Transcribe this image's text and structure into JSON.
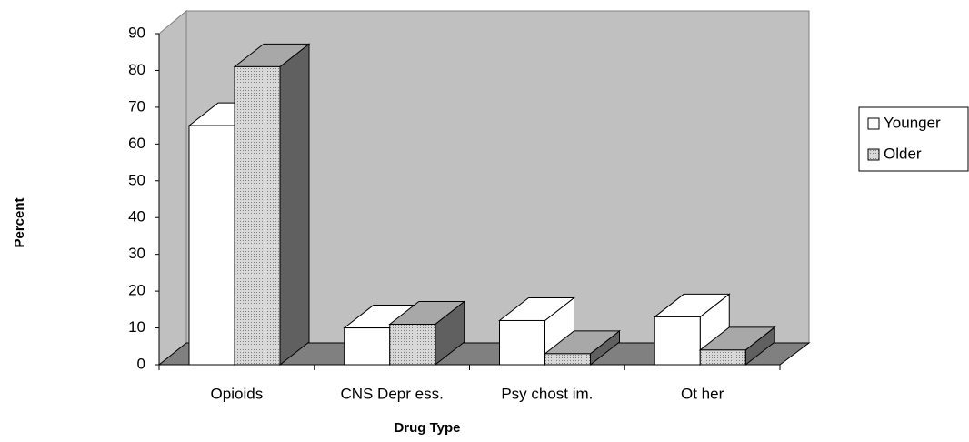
{
  "chart_data": {
    "type": "bar3d",
    "x_label": "Drug Type",
    "y_label": "Percent",
    "categories": [
      "Opioids",
      "CNS Depr ess.",
      "Psy chost im.",
      "Ot her"
    ],
    "series": [
      {
        "name": "Younger",
        "color": "#ffffff",
        "values": [
          65,
          10,
          12,
          13
        ]
      },
      {
        "name": "Older",
        "color": "#c8c8c8",
        "values": [
          81,
          11,
          3,
          4
        ]
      }
    ],
    "ylim": [
      0,
      90
    ],
    "yticks": [
      0,
      10,
      20,
      30,
      40,
      50,
      60,
      70,
      80,
      90
    ],
    "legend": "right"
  }
}
